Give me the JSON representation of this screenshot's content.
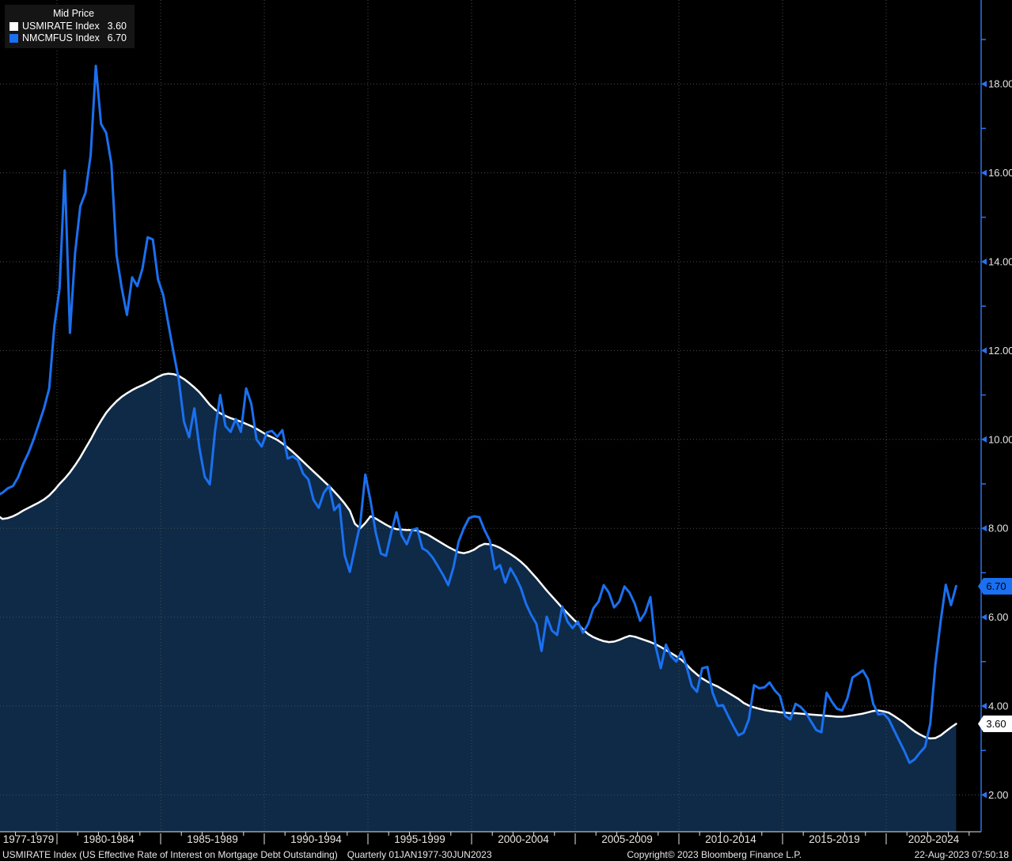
{
  "legend": {
    "title": "Mid Price",
    "items": [
      {
        "label": "USMIRATE Index",
        "value": "3.60",
        "color": "#ffffff"
      },
      {
        "label": "NMCMFUS Index",
        "value": "6.70",
        "color": "#1a70f0"
      }
    ]
  },
  "footer": {
    "description": "USMIRATE Index (US Effective Rate of Interest on Mortgage Debt Outstanding)",
    "periodicity": "Quarterly 01JAN1977-30JUN2023",
    "copyright": "Copyright© 2023 Bloomberg Finance L.P.",
    "timestamp": "22-Aug-2023 07:50:18"
  },
  "colors": {
    "background": "#000000",
    "area_fill": "#0e2a47",
    "grid": "#4d4d4d",
    "axis_blue": "#2a72f0",
    "axis_text": "#e8e6e3",
    "baseline": "#e8e6e3",
    "white_series": "#ffffff",
    "blue_series": "#1a70f0"
  },
  "chart_data": {
    "type": "line",
    "title": "Mid Price",
    "grid": "dotted",
    "legend_position": "top-left",
    "x_section_labels": [
      "1977-1979",
      "1980-1984",
      "1985-1989",
      "1990-1994",
      "1995-1999",
      "2000-2004",
      "2005-2009",
      "2010-2014",
      "2015-2019",
      "2020-2024"
    ],
    "x_boundary_years": [
      1977,
      1980,
      1985,
      1990,
      1995,
      2000,
      2005,
      2010,
      2015,
      2020,
      2024.6
    ],
    "x_minor_tick_step_years": 1,
    "y_axis": {
      "ylim": [
        1.3,
        19.8
      ],
      "major_ticks": [
        {
          "value": 18,
          "label": "18.00"
        },
        {
          "value": 16,
          "label": "16.00"
        },
        {
          "value": 14,
          "label": "14.00"
        },
        {
          "value": 12,
          "label": "12.00"
        },
        {
          "value": 10,
          "label": "10.00"
        },
        {
          "value": 8,
          "label": "8.00"
        },
        {
          "value": 6,
          "label": "6.00"
        },
        {
          "value": 4,
          "label": "4.00"
        },
        {
          "value": 2,
          "label": "2.00"
        }
      ],
      "minor_tick_values": [
        19,
        17,
        15,
        13,
        11,
        9,
        7,
        5,
        3
      ]
    },
    "series": [
      {
        "name": "USMIRATE Index",
        "color": "#ffffff",
        "style": "line-with-area-fill",
        "last_value": 3.6,
        "last_value_label": "3.60",
        "tag_color": "#ffffff",
        "start_year": 1977,
        "period_years": 0.25,
        "values": [
          8.29,
          8.21,
          8.23,
          8.27,
          8.33,
          8.4,
          8.46,
          8.52,
          8.58,
          8.65,
          8.74,
          8.86,
          9.0,
          9.12,
          9.26,
          9.42,
          9.6,
          9.8,
          10.0,
          10.22,
          10.42,
          10.6,
          10.74,
          10.86,
          10.96,
          11.04,
          11.11,
          11.17,
          11.22,
          11.28,
          11.34,
          11.41,
          11.46,
          11.48,
          11.47,
          11.43,
          11.36,
          11.27,
          11.17,
          11.06,
          10.92,
          10.78,
          10.67,
          10.59,
          10.53,
          10.48,
          10.44,
          10.4,
          10.35,
          10.3,
          10.24,
          10.17,
          10.1,
          10.05,
          9.99,
          9.91,
          9.82,
          9.72,
          9.61,
          9.5,
          9.39,
          9.28,
          9.17,
          9.06,
          8.95,
          8.83,
          8.7,
          8.56,
          8.4,
          8.1,
          8.0,
          8.12,
          8.27,
          8.22,
          8.15,
          8.08,
          8.02,
          7.98,
          7.97,
          7.96,
          7.96,
          7.95,
          7.91,
          7.86,
          7.79,
          7.72,
          7.65,
          7.58,
          7.52,
          7.46,
          7.44,
          7.47,
          7.52,
          7.6,
          7.65,
          7.64,
          7.61,
          7.56,
          7.49,
          7.42,
          7.34,
          7.25,
          7.14,
          7.01,
          6.88,
          6.74,
          6.6,
          6.47,
          6.34,
          6.21,
          6.09,
          5.97,
          5.86,
          5.72,
          5.62,
          5.55,
          5.5,
          5.46,
          5.44,
          5.45,
          5.49,
          5.54,
          5.58,
          5.56,
          5.52,
          5.48,
          5.44,
          5.39,
          5.33,
          5.26,
          5.19,
          5.12,
          5.04,
          4.93,
          4.81,
          4.71,
          4.62,
          4.55,
          4.49,
          4.44,
          4.37,
          4.3,
          4.23,
          4.16,
          4.07,
          4.01,
          3.97,
          3.94,
          3.91,
          3.89,
          3.88,
          3.86,
          3.85,
          3.84,
          3.84,
          3.83,
          3.82,
          3.81,
          3.8,
          3.79,
          3.78,
          3.77,
          3.76,
          3.76,
          3.77,
          3.79,
          3.81,
          3.83,
          3.86,
          3.89,
          3.9,
          3.88,
          3.85,
          3.78,
          3.7,
          3.62,
          3.52,
          3.43,
          3.36,
          3.3,
          3.27,
          3.28,
          3.34,
          3.43,
          3.52,
          3.6
        ]
      },
      {
        "name": "NMCMFUS Index",
        "color": "#1a70f0",
        "style": "line",
        "last_value": 6.7,
        "last_value_label": "6.70",
        "tag_color": "#1a70f0",
        "start_year": 1977,
        "period_years": 0.25,
        "values": [
          8.74,
          8.8,
          8.9,
          8.95,
          9.15,
          9.45,
          9.7,
          10.0,
          10.35,
          10.7,
          11.15,
          12.55,
          13.4,
          16.05,
          12.4,
          14.2,
          15.25,
          15.55,
          16.4,
          18.41,
          17.1,
          16.9,
          16.2,
          14.15,
          13.4,
          12.8,
          13.65,
          13.45,
          13.85,
          14.55,
          14.5,
          13.6,
          13.25,
          12.6,
          11.95,
          11.35,
          10.4,
          10.05,
          10.7,
          9.8,
          9.16,
          8.99,
          10.2,
          11.0,
          10.3,
          10.17,
          10.46,
          10.17,
          11.15,
          10.8,
          10.0,
          9.84,
          10.16,
          10.19,
          10.06,
          10.21,
          9.57,
          9.62,
          9.53,
          9.23,
          9.1,
          8.64,
          8.46,
          8.8,
          8.96,
          8.41,
          8.54,
          7.4,
          7.02,
          7.56,
          8.09,
          9.21,
          8.62,
          7.91,
          7.43,
          7.38,
          7.9,
          8.36,
          7.84,
          7.64,
          7.96,
          8.0,
          7.55,
          7.48,
          7.34,
          7.15,
          6.95,
          6.72,
          7.12,
          7.7,
          8.0,
          8.23,
          8.27,
          8.25,
          7.96,
          7.73,
          7.08,
          7.17,
          6.78,
          7.1,
          6.9,
          6.66,
          6.3,
          6.05,
          5.85,
          5.24,
          6.01,
          5.7,
          5.6,
          6.24,
          5.9,
          5.75,
          5.9,
          5.65,
          5.85,
          6.2,
          6.35,
          6.72,
          6.55,
          6.22,
          6.35,
          6.69,
          6.55,
          6.3,
          5.92,
          6.1,
          6.45,
          5.35,
          4.85,
          5.38,
          5.12,
          5.0,
          5.23,
          4.88,
          4.45,
          4.32,
          4.85,
          4.88,
          4.3,
          4.0,
          4.02,
          3.78,
          3.55,
          3.34,
          3.4,
          3.7,
          4.47,
          4.4,
          4.42,
          4.53,
          4.35,
          4.23,
          3.78,
          3.7,
          4.05,
          3.98,
          3.85,
          3.65,
          3.46,
          3.41,
          4.3,
          4.1,
          3.94,
          3.9,
          4.17,
          4.64,
          4.72,
          4.8,
          4.6,
          4.05,
          3.81,
          3.83,
          3.7,
          3.46,
          3.22,
          2.99,
          2.72,
          2.8,
          2.95,
          3.08,
          3.6,
          4.94,
          5.9,
          6.73,
          6.27,
          6.7
        ]
      }
    ]
  }
}
